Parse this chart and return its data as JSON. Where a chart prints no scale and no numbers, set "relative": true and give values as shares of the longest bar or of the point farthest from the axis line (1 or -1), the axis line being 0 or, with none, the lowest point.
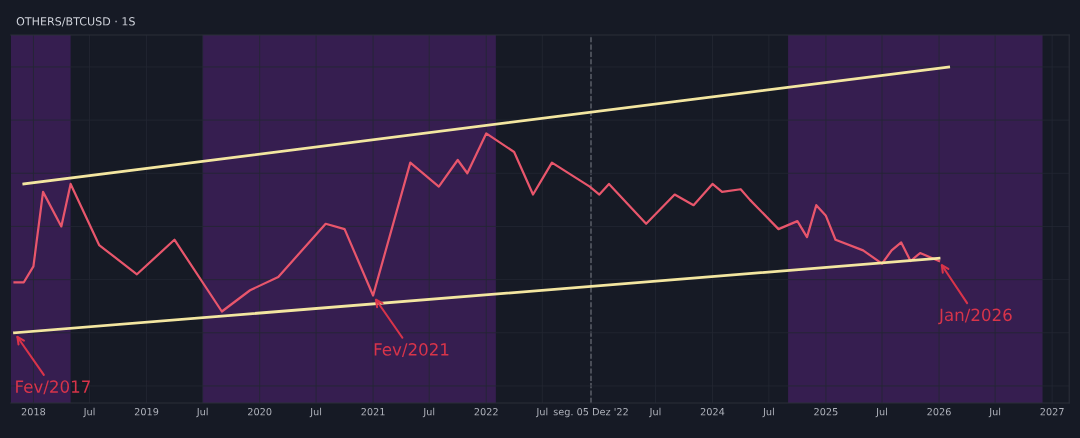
{
  "chart_data": {
    "type": "line",
    "title": "OTHERS/BTCUSD · 1S",
    "relative": true,
    "tick_labels": "x",
    "grid": true,
    "legend": false,
    "marker": "none",
    "line_style": "solid",
    "xlim": [
      "2017-10-20",
      "2027-02-25"
    ],
    "xticks": [
      {
        "value": "2018-01",
        "label": "2018"
      },
      {
        "value": "2018-07",
        "label": "Jul"
      },
      {
        "value": "2019-01",
        "label": "2019"
      },
      {
        "value": "2019-07",
        "label": "Jul"
      },
      {
        "value": "2020-01",
        "label": "2020"
      },
      {
        "value": "2020-07",
        "label": "Jul"
      },
      {
        "value": "2021-01",
        "label": "2021"
      },
      {
        "value": "2021-07",
        "label": "Jul"
      },
      {
        "value": "2022-01",
        "label": "2022"
      },
      {
        "value": "2022-07",
        "label": "Jul"
      },
      {
        "value": "2022-12-05",
        "label": "seg. 05 Dez '22"
      },
      {
        "value": "2023-07",
        "label": "Jul"
      },
      {
        "value": "2024-01",
        "label": "2024"
      },
      {
        "value": "2024-07",
        "label": "Jul"
      },
      {
        "value": "2025-01",
        "label": "2025"
      },
      {
        "value": "2025-07",
        "label": "Jul"
      },
      {
        "value": "2026-01",
        "label": "2026"
      },
      {
        "value": "2026-07",
        "label": "Jul"
      },
      {
        "value": "2027-01",
        "label": "2027"
      }
    ],
    "series": [
      {
        "color": "#e8566c",
        "x": [
          "2017-11",
          "2017-12",
          "2018-01",
          "2018-02",
          "2018-04",
          "2018-05",
          "2018-08",
          "2018-12",
          "2019-04",
          "2019-09",
          "2019-12",
          "2020-03",
          "2020-08",
          "2020-10",
          "2021-01",
          "2021-05",
          "2021-08",
          "2021-10",
          "2021-11",
          "2022-01",
          "2022-04",
          "2022-06",
          "2022-08",
          "2022-12",
          "2023-01",
          "2023-02",
          "2023-06",
          "2023-09",
          "2023-11",
          "2024-01",
          "2024-02",
          "2024-04",
          "2024-05",
          "2024-08",
          "2024-10",
          "2024-11",
          "2024-12",
          "2025-01",
          "2025-02",
          "2025-05",
          "2025-07",
          "2025-08",
          "2025-09",
          "2025-10",
          "2025-11",
          "2026-01"
        ],
        "values": [
          0.19,
          0.19,
          0.25,
          0.53,
          0.4,
          0.56,
          0.33,
          0.22,
          0.35,
          0.08,
          0.16,
          0.21,
          0.41,
          0.39,
          0.14,
          0.64,
          0.55,
          0.65,
          0.6,
          0.75,
          0.68,
          0.52,
          0.64,
          0.55,
          0.52,
          0.56,
          0.41,
          0.52,
          0.48,
          0.56,
          0.53,
          0.54,
          0.5,
          0.39,
          0.42,
          0.36,
          0.48,
          0.44,
          0.35,
          0.31,
          0.26,
          0.31,
          0.34,
          0.27,
          0.3,
          0.27
        ]
      },
      {
        "color": "#f3e6a0",
        "x": [
          "2017-12",
          "2026-02"
        ],
        "values": [
          0.56,
          1.0
        ]
      },
      {
        "color": "#f3e6a0",
        "x": [
          "2017-11",
          "2026-01"
        ],
        "values": [
          0,
          0.28
        ]
      }
    ],
    "bands": [
      {
        "axis": "x",
        "from": "2017-10-20",
        "to": "2018-05",
        "color": "#3a1f55"
      },
      {
        "axis": "x",
        "from": "2019-07",
        "to": "2022-02",
        "color": "#3a1f55"
      },
      {
        "axis": "x",
        "from": "2024-09",
        "to": "2026-12",
        "color": "#3a1f55"
      }
    ],
    "ref_lines": [
      {
        "axis": "x",
        "value": "2022-12-05",
        "color": "#8a8d96",
        "line_style": "dashed"
      }
    ],
    "annotations": [
      {
        "text": "Fev/2017",
        "x": "2017-11",
        "y": 0
      },
      {
        "text": "Fev/2021",
        "x": "2021-01",
        "y": 0.14
      },
      {
        "text": "Jan/2026",
        "x": "2026-01",
        "y": 0.27
      }
    ]
  }
}
